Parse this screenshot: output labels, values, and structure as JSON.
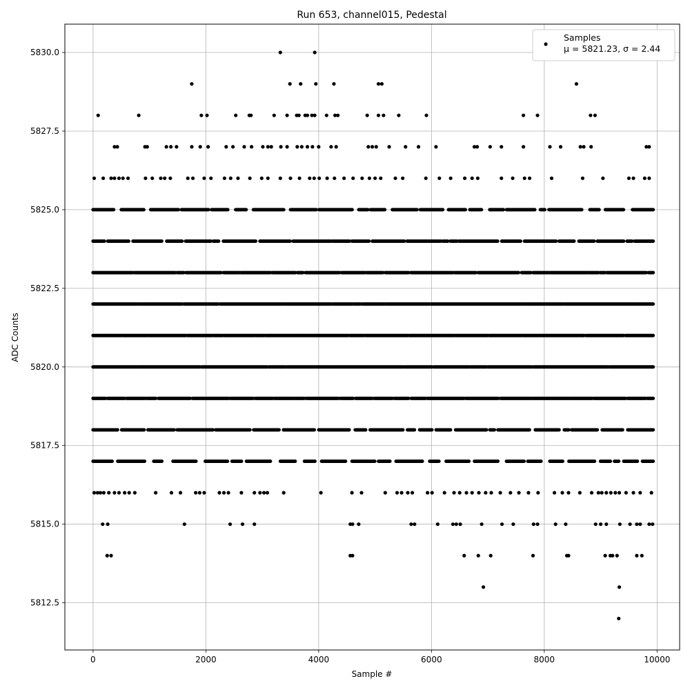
{
  "chart_data": {
    "type": "scatter",
    "title": "Run 653, channel015, Pedestal",
    "xlabel": "Sample #",
    "ylabel": "ADC Counts",
    "xlim": [
      -500,
      10400
    ],
    "ylim": [
      5811.0,
      5830.9
    ],
    "xticks": [
      0,
      2000,
      4000,
      6000,
      8000,
      10000
    ],
    "xtick_labels": [
      "0",
      "2000",
      "4000",
      "6000",
      "8000",
      "10000"
    ],
    "yticks": [
      5812.5,
      5815.0,
      5817.5,
      5820.0,
      5822.5,
      5825.0,
      5827.5,
      5830.0
    ],
    "ytick_labels": [
      "5812.5",
      "5815.0",
      "5817.5",
      "5820.0",
      "5822.5",
      "5825.0",
      "5827.5",
      "5830.0"
    ],
    "grid": true,
    "legend_position": "top-right",
    "marker_color": "#000000",
    "series": [
      {
        "name": "Samples",
        "stats_label": "μ = 5821.23, σ = 2.44",
        "mean": 5821.23,
        "std": 2.44,
        "dense_bands": [
          {
            "y": 5817,
            "x_range": [
              0,
              9930
            ],
            "density": 0.55
          },
          {
            "y": 5818,
            "x_range": [
              0,
              9930
            ],
            "density": 0.8
          },
          {
            "y": 5819,
            "x_range": [
              0,
              9930
            ],
            "density": 0.95
          },
          {
            "y": 5820,
            "x_range": [
              0,
              9930
            ],
            "density": 1.0
          },
          {
            "y": 5821,
            "x_range": [
              0,
              9930
            ],
            "density": 1.0
          },
          {
            "y": 5822,
            "x_range": [
              0,
              9930
            ],
            "density": 1.0
          },
          {
            "y": 5823,
            "x_range": [
              0,
              9930
            ],
            "density": 0.95
          },
          {
            "y": 5824,
            "x_range": [
              0,
              9930
            ],
            "density": 0.85
          },
          {
            "y": 5825,
            "x_range": [
              0,
              9930
            ],
            "density": 0.7
          }
        ],
        "points": [
          {
            "x": 3320,
            "y": 5830
          },
          {
            "x": 3930,
            "y": 5830
          },
          {
            "x": 1750,
            "y": 5829
          },
          {
            "x": 3490,
            "y": 5829
          },
          {
            "x": 3680,
            "y": 5829
          },
          {
            "x": 3950,
            "y": 5829
          },
          {
            "x": 4270,
            "y": 5829
          },
          {
            "x": 5060,
            "y": 5829
          },
          {
            "x": 5120,
            "y": 5829
          },
          {
            "x": 8570,
            "y": 5829
          },
          {
            "x": 90,
            "y": 5828
          },
          {
            "x": 810,
            "y": 5828
          },
          {
            "x": 1920,
            "y": 5828
          },
          {
            "x": 2020,
            "y": 5828
          },
          {
            "x": 2530,
            "y": 5828
          },
          {
            "x": 2770,
            "y": 5828
          },
          {
            "x": 2800,
            "y": 5828
          },
          {
            "x": 3210,
            "y": 5828
          },
          {
            "x": 3440,
            "y": 5828
          },
          {
            "x": 3610,
            "y": 5828
          },
          {
            "x": 3650,
            "y": 5828
          },
          {
            "x": 3760,
            "y": 5828
          },
          {
            "x": 3800,
            "y": 5828
          },
          {
            "x": 3880,
            "y": 5828
          },
          {
            "x": 3930,
            "y": 5828
          },
          {
            "x": 4140,
            "y": 5828
          },
          {
            "x": 4290,
            "y": 5828
          },
          {
            "x": 4340,
            "y": 5828
          },
          {
            "x": 4860,
            "y": 5828
          },
          {
            "x": 5060,
            "y": 5828
          },
          {
            "x": 5150,
            "y": 5828
          },
          {
            "x": 5420,
            "y": 5828
          },
          {
            "x": 5910,
            "y": 5828
          },
          {
            "x": 7630,
            "y": 5828
          },
          {
            "x": 7880,
            "y": 5828
          },
          {
            "x": 8820,
            "y": 5828
          },
          {
            "x": 8900,
            "y": 5828
          },
          {
            "x": 380,
            "y": 5827
          },
          {
            "x": 430,
            "y": 5827
          },
          {
            "x": 920,
            "y": 5827
          },
          {
            "x": 960,
            "y": 5827
          },
          {
            "x": 1300,
            "y": 5827
          },
          {
            "x": 1380,
            "y": 5827
          },
          {
            "x": 1480,
            "y": 5827
          },
          {
            "x": 1750,
            "y": 5827
          },
          {
            "x": 1900,
            "y": 5827
          },
          {
            "x": 2040,
            "y": 5827
          },
          {
            "x": 2360,
            "y": 5827
          },
          {
            "x": 2480,
            "y": 5827
          },
          {
            "x": 2680,
            "y": 5827
          },
          {
            "x": 2810,
            "y": 5827
          },
          {
            "x": 3010,
            "y": 5827
          },
          {
            "x": 3100,
            "y": 5827
          },
          {
            "x": 3160,
            "y": 5827
          },
          {
            "x": 3330,
            "y": 5827
          },
          {
            "x": 3440,
            "y": 5827
          },
          {
            "x": 3620,
            "y": 5827
          },
          {
            "x": 3700,
            "y": 5827
          },
          {
            "x": 3800,
            "y": 5827
          },
          {
            "x": 3890,
            "y": 5827
          },
          {
            "x": 4000,
            "y": 5827
          },
          {
            "x": 4220,
            "y": 5827
          },
          {
            "x": 4310,
            "y": 5827
          },
          {
            "x": 4880,
            "y": 5827
          },
          {
            "x": 4950,
            "y": 5827
          },
          {
            "x": 5020,
            "y": 5827
          },
          {
            "x": 5250,
            "y": 5827
          },
          {
            "x": 5540,
            "y": 5827
          },
          {
            "x": 5770,
            "y": 5827
          },
          {
            "x": 6080,
            "y": 5827
          },
          {
            "x": 6760,
            "y": 5827
          },
          {
            "x": 6810,
            "y": 5827
          },
          {
            "x": 7040,
            "y": 5827
          },
          {
            "x": 7240,
            "y": 5827
          },
          {
            "x": 7630,
            "y": 5827
          },
          {
            "x": 8100,
            "y": 5827
          },
          {
            "x": 8290,
            "y": 5827
          },
          {
            "x": 8640,
            "y": 5827
          },
          {
            "x": 8700,
            "y": 5827
          },
          {
            "x": 8830,
            "y": 5827
          },
          {
            "x": 9810,
            "y": 5827
          },
          {
            "x": 9860,
            "y": 5827
          },
          {
            "x": 20,
            "y": 5826
          },
          {
            "x": 180,
            "y": 5826
          },
          {
            "x": 320,
            "y": 5826
          },
          {
            "x": 380,
            "y": 5826
          },
          {
            "x": 460,
            "y": 5826
          },
          {
            "x": 530,
            "y": 5826
          },
          {
            "x": 620,
            "y": 5826
          },
          {
            "x": 930,
            "y": 5826
          },
          {
            "x": 1050,
            "y": 5826
          },
          {
            "x": 1200,
            "y": 5826
          },
          {
            "x": 1270,
            "y": 5826
          },
          {
            "x": 1370,
            "y": 5826
          },
          {
            "x": 1680,
            "y": 5826
          },
          {
            "x": 1770,
            "y": 5826
          },
          {
            "x": 1970,
            "y": 5826
          },
          {
            "x": 2090,
            "y": 5826
          },
          {
            "x": 2330,
            "y": 5826
          },
          {
            "x": 2440,
            "y": 5826
          },
          {
            "x": 2570,
            "y": 5826
          },
          {
            "x": 2780,
            "y": 5826
          },
          {
            "x": 2990,
            "y": 5826
          },
          {
            "x": 3100,
            "y": 5826
          },
          {
            "x": 3320,
            "y": 5826
          },
          {
            "x": 3500,
            "y": 5826
          },
          {
            "x": 3660,
            "y": 5826
          },
          {
            "x": 3840,
            "y": 5826
          },
          {
            "x": 3920,
            "y": 5826
          },
          {
            "x": 4010,
            "y": 5826
          },
          {
            "x": 4150,
            "y": 5826
          },
          {
            "x": 4280,
            "y": 5826
          },
          {
            "x": 4450,
            "y": 5826
          },
          {
            "x": 4610,
            "y": 5826
          },
          {
            "x": 4770,
            "y": 5826
          },
          {
            "x": 4900,
            "y": 5826
          },
          {
            "x": 5000,
            "y": 5826
          },
          {
            "x": 5100,
            "y": 5826
          },
          {
            "x": 5360,
            "y": 5826
          },
          {
            "x": 5490,
            "y": 5826
          },
          {
            "x": 5900,
            "y": 5826
          },
          {
            "x": 6140,
            "y": 5826
          },
          {
            "x": 6340,
            "y": 5826
          },
          {
            "x": 6590,
            "y": 5826
          },
          {
            "x": 6720,
            "y": 5826
          },
          {
            "x": 6820,
            "y": 5826
          },
          {
            "x": 7240,
            "y": 5826
          },
          {
            "x": 7440,
            "y": 5826
          },
          {
            "x": 7650,
            "y": 5826
          },
          {
            "x": 7740,
            "y": 5826
          },
          {
            "x": 8130,
            "y": 5826
          },
          {
            "x": 8680,
            "y": 5826
          },
          {
            "x": 9040,
            "y": 5826
          },
          {
            "x": 9500,
            "y": 5826
          },
          {
            "x": 9580,
            "y": 5826
          },
          {
            "x": 9780,
            "y": 5826
          },
          {
            "x": 9860,
            "y": 5826
          },
          {
            "x": 20,
            "y": 5816
          },
          {
            "x": 80,
            "y": 5816
          },
          {
            "x": 130,
            "y": 5816
          },
          {
            "x": 190,
            "y": 5816
          },
          {
            "x": 280,
            "y": 5816
          },
          {
            "x": 380,
            "y": 5816
          },
          {
            "x": 460,
            "y": 5816
          },
          {
            "x": 560,
            "y": 5816
          },
          {
            "x": 640,
            "y": 5816
          },
          {
            "x": 740,
            "y": 5816
          },
          {
            "x": 1110,
            "y": 5816
          },
          {
            "x": 1390,
            "y": 5816
          },
          {
            "x": 1550,
            "y": 5816
          },
          {
            "x": 1820,
            "y": 5816
          },
          {
            "x": 1890,
            "y": 5816
          },
          {
            "x": 1970,
            "y": 5816
          },
          {
            "x": 2240,
            "y": 5816
          },
          {
            "x": 2320,
            "y": 5816
          },
          {
            "x": 2400,
            "y": 5816
          },
          {
            "x": 2630,
            "y": 5816
          },
          {
            "x": 2860,
            "y": 5816
          },
          {
            "x": 2960,
            "y": 5816
          },
          {
            "x": 3030,
            "y": 5816
          },
          {
            "x": 3090,
            "y": 5816
          },
          {
            "x": 3380,
            "y": 5816
          },
          {
            "x": 4040,
            "y": 5816
          },
          {
            "x": 4590,
            "y": 5816
          },
          {
            "x": 4760,
            "y": 5816
          },
          {
            "x": 5180,
            "y": 5816
          },
          {
            "x": 5390,
            "y": 5816
          },
          {
            "x": 5470,
            "y": 5816
          },
          {
            "x": 5580,
            "y": 5816
          },
          {
            "x": 5660,
            "y": 5816
          },
          {
            "x": 5930,
            "y": 5816
          },
          {
            "x": 6010,
            "y": 5816
          },
          {
            "x": 6230,
            "y": 5816
          },
          {
            "x": 6400,
            "y": 5816
          },
          {
            "x": 6500,
            "y": 5816
          },
          {
            "x": 6620,
            "y": 5816
          },
          {
            "x": 6720,
            "y": 5816
          },
          {
            "x": 6840,
            "y": 5816
          },
          {
            "x": 6960,
            "y": 5816
          },
          {
            "x": 7060,
            "y": 5816
          },
          {
            "x": 7220,
            "y": 5816
          },
          {
            "x": 7400,
            "y": 5816
          },
          {
            "x": 7550,
            "y": 5816
          },
          {
            "x": 7720,
            "y": 5816
          },
          {
            "x": 7890,
            "y": 5816
          },
          {
            "x": 8180,
            "y": 5816
          },
          {
            "x": 8320,
            "y": 5816
          },
          {
            "x": 8430,
            "y": 5816
          },
          {
            "x": 8630,
            "y": 5816
          },
          {
            "x": 8840,
            "y": 5816
          },
          {
            "x": 8960,
            "y": 5816
          },
          {
            "x": 9020,
            "y": 5816
          },
          {
            "x": 9100,
            "y": 5816
          },
          {
            "x": 9180,
            "y": 5816
          },
          {
            "x": 9260,
            "y": 5816
          },
          {
            "x": 9330,
            "y": 5816
          },
          {
            "x": 9450,
            "y": 5816
          },
          {
            "x": 9580,
            "y": 5816
          },
          {
            "x": 9700,
            "y": 5816
          },
          {
            "x": 9900,
            "y": 5816
          },
          {
            "x": 170,
            "y": 5815
          },
          {
            "x": 260,
            "y": 5815
          },
          {
            "x": 1620,
            "y": 5815
          },
          {
            "x": 2430,
            "y": 5815
          },
          {
            "x": 2650,
            "y": 5815
          },
          {
            "x": 2860,
            "y": 5815
          },
          {
            "x": 4560,
            "y": 5815
          },
          {
            "x": 4600,
            "y": 5815
          },
          {
            "x": 4710,
            "y": 5815
          },
          {
            "x": 5640,
            "y": 5815
          },
          {
            "x": 5700,
            "y": 5815
          },
          {
            "x": 6110,
            "y": 5815
          },
          {
            "x": 6380,
            "y": 5815
          },
          {
            "x": 6440,
            "y": 5815
          },
          {
            "x": 6510,
            "y": 5815
          },
          {
            "x": 6890,
            "y": 5815
          },
          {
            "x": 7250,
            "y": 5815
          },
          {
            "x": 7450,
            "y": 5815
          },
          {
            "x": 7810,
            "y": 5815
          },
          {
            "x": 7880,
            "y": 5815
          },
          {
            "x": 8200,
            "y": 5815
          },
          {
            "x": 8380,
            "y": 5815
          },
          {
            "x": 8910,
            "y": 5815
          },
          {
            "x": 9000,
            "y": 5815
          },
          {
            "x": 9100,
            "y": 5815
          },
          {
            "x": 9340,
            "y": 5815
          },
          {
            "x": 9520,
            "y": 5815
          },
          {
            "x": 9640,
            "y": 5815
          },
          {
            "x": 9700,
            "y": 5815
          },
          {
            "x": 9860,
            "y": 5815
          },
          {
            "x": 9920,
            "y": 5815
          },
          {
            "x": 250,
            "y": 5814
          },
          {
            "x": 320,
            "y": 5814
          },
          {
            "x": 4560,
            "y": 5814
          },
          {
            "x": 4600,
            "y": 5814
          },
          {
            "x": 6580,
            "y": 5814
          },
          {
            "x": 6830,
            "y": 5814
          },
          {
            "x": 7050,
            "y": 5814
          },
          {
            "x": 7800,
            "y": 5814
          },
          {
            "x": 8400,
            "y": 5814
          },
          {
            "x": 8430,
            "y": 5814
          },
          {
            "x": 9080,
            "y": 5814
          },
          {
            "x": 9170,
            "y": 5814
          },
          {
            "x": 9210,
            "y": 5814
          },
          {
            "x": 9290,
            "y": 5814
          },
          {
            "x": 9640,
            "y": 5814
          },
          {
            "x": 9730,
            "y": 5814
          },
          {
            "x": 6920,
            "y": 5813
          },
          {
            "x": 9330,
            "y": 5813
          },
          {
            "x": 9320,
            "y": 5812
          }
        ]
      }
    ]
  }
}
